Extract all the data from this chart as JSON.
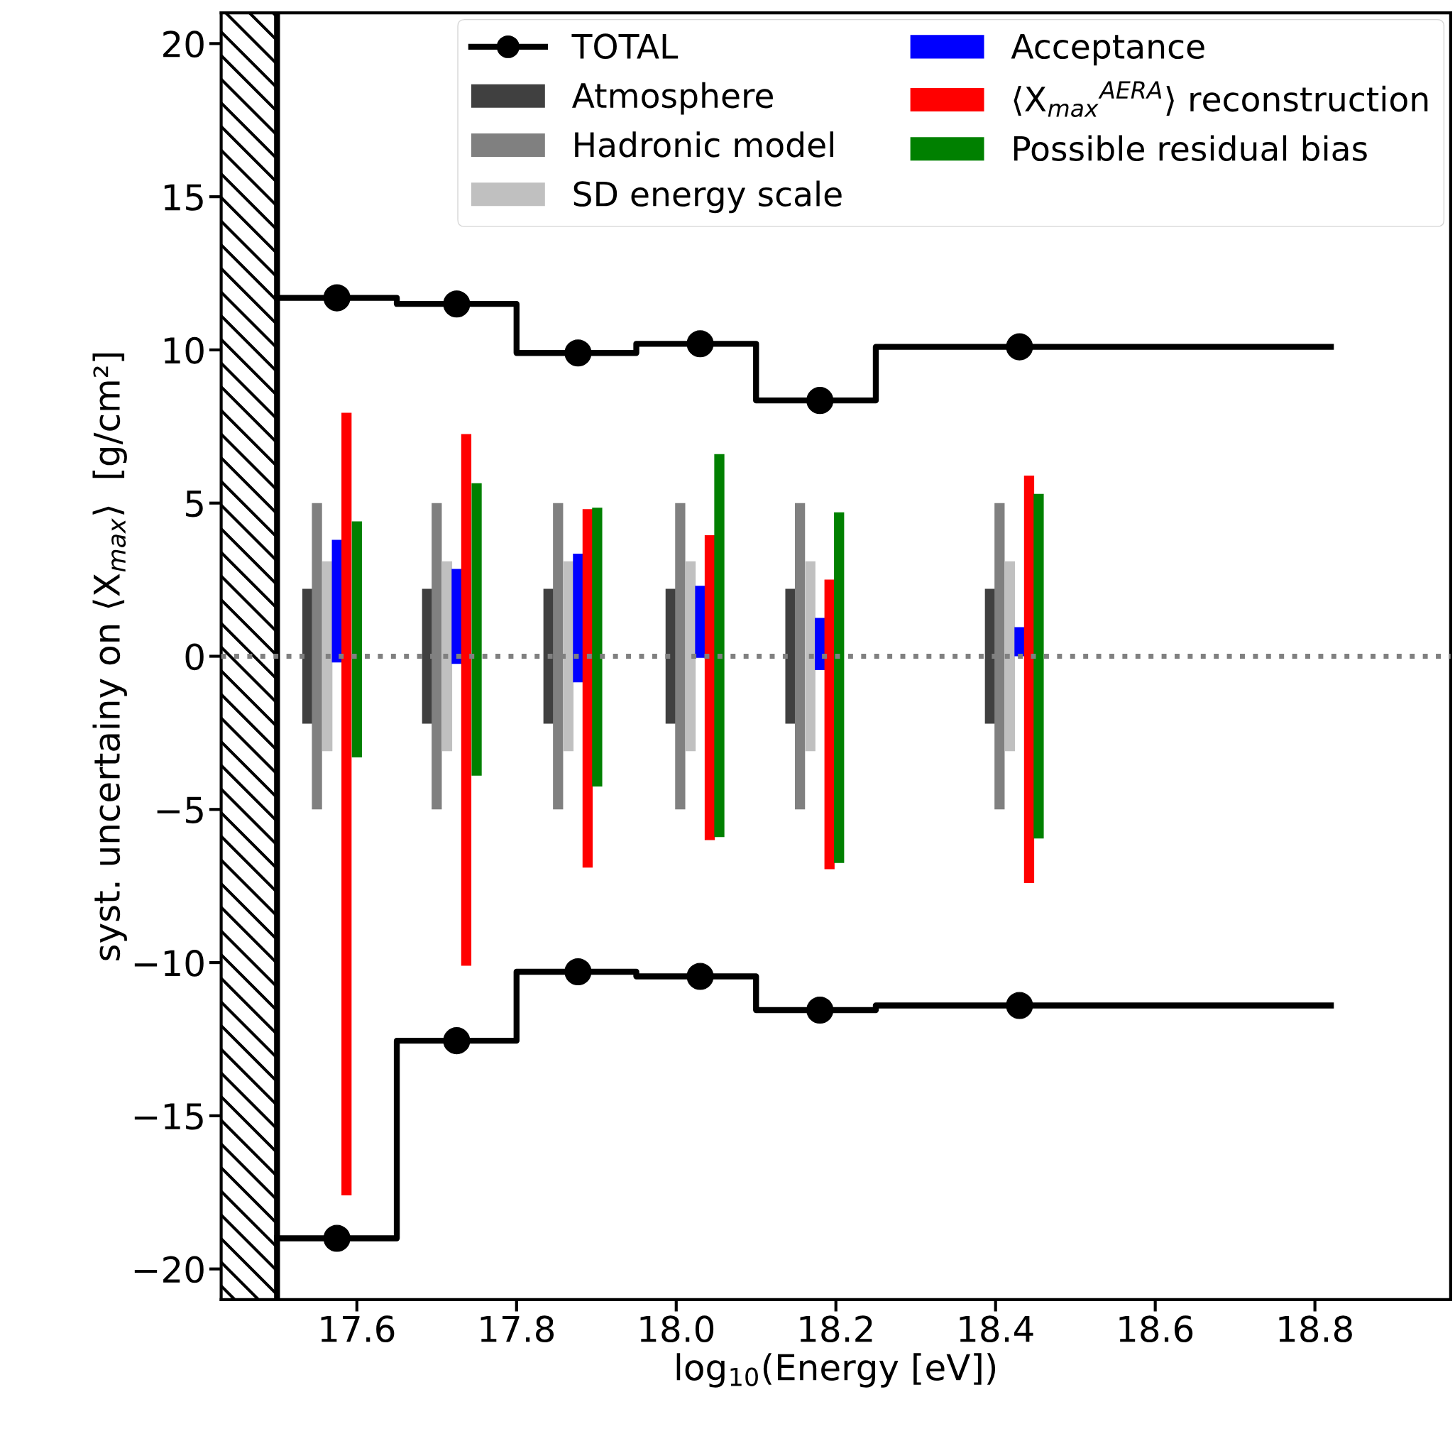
{
  "chart_data": {
    "type": "bar",
    "xlabel": "log$_{10}$(Energy [eV])",
    "ylabel": "syst. uncertainy on ⟨X$_{max}$⟩  [g/cm²]",
    "xlim": [
      17.43,
      18.97
    ],
    "ylim": [
      -21,
      21
    ],
    "xticks": [
      17.6,
      17.8,
      {
        "value": 18.0,
        "label": "18.0"
      },
      18.2,
      18.4,
      18.6,
      18.8
    ],
    "yticks": [
      {
        "value": -20,
        "label": "−20"
      },
      {
        "value": -15,
        "label": "−15"
      },
      {
        "value": -10,
        "label": "−10"
      },
      {
        "value": -5,
        "label": "−5"
      },
      0,
      5,
      10,
      15,
      20
    ],
    "grid": false,
    "legend": "top right",
    "bands": [
      {
        "axis": "x",
        "from": 17.43,
        "to": 17.5,
        "color": "#000000"
      }
    ],
    "ref_lines": [
      {
        "axis": "x",
        "value": 17.5,
        "color": "#000000",
        "line_style": "solid"
      },
      {
        "axis": "y",
        "value": 0,
        "color": "#808080",
        "line_style": "dotted"
      }
    ],
    "series": [
      {
        "name": "TOTAL",
        "type": "step",
        "color": "#000000",
        "x": [
          17.5,
          17.65,
          17.8,
          17.95,
          18.1,
          18.25,
          18.82
        ],
        "values": [
          11.7,
          11.5,
          9.9,
          10.2,
          8.35,
          10.1,
          10.1
        ]
      },
      {
        "type": "step",
        "color": "#000000",
        "x": [
          17.5,
          17.65,
          17.8,
          17.95,
          18.1,
          18.25,
          18.82
        ],
        "values": [
          -19.0,
          -12.55,
          -10.3,
          -10.45,
          -11.55,
          -11.4,
          -11.4
        ]
      },
      {
        "type": "scatter",
        "color": "#000000",
        "marker": "circle",
        "x": [
          17.575,
          17.725,
          17.877,
          18.03,
          18.18,
          18.43
        ],
        "values": [
          11.7,
          11.5,
          9.9,
          10.2,
          8.35,
          10.1
        ]
      },
      {
        "type": "scatter",
        "color": "#000000",
        "marker": "circle",
        "x": [
          17.575,
          17.725,
          17.877,
          18.03,
          18.18,
          18.43
        ],
        "values": [
          -19.0,
          -12.55,
          -10.3,
          -10.45,
          -11.55,
          -11.4
        ]
      },
      {
        "name": "Atmosphere",
        "color": "#404040",
        "x": [
          17.538,
          17.688,
          17.84,
          17.993,
          18.143,
          18.393
        ],
        "base": [
          -2.2,
          -2.2,
          -2.2,
          -2.2,
          -2.2,
          -2.2
        ],
        "values": [
          4.4,
          4.4,
          4.4,
          4.4,
          4.4,
          4.4
        ]
      },
      {
        "name": "Hadronic model",
        "color": "#808080",
        "x": [
          17.55,
          17.7,
          17.852,
          18.005,
          18.155,
          18.405
        ],
        "base": [
          -5,
          -5,
          -5,
          -5,
          -5,
          -5
        ],
        "values": [
          10,
          10,
          10,
          10,
          10,
          10
        ]
      },
      {
        "name": "SD energy scale",
        "color": "#c0c0c0",
        "x": [
          17.563,
          17.713,
          17.865,
          18.018,
          18.168,
          18.418
        ],
        "base": [
          -3.1,
          -3.1,
          -3.1,
          -3.1,
          -3.1,
          -3.1
        ],
        "values": [
          6.2,
          6.2,
          6.2,
          6.2,
          6.2,
          6.2
        ]
      },
      {
        "name": "Acceptance",
        "color": "#0000ff",
        "x": [
          17.575,
          17.725,
          17.877,
          18.03,
          18.18,
          18.43
        ],
        "base": [
          -0.2,
          -0.25,
          -0.85,
          -0.05,
          -0.45,
          0.0
        ],
        "values": [
          4.0,
          3.1,
          4.2,
          2.35,
          1.7,
          0.95
        ]
      },
      {
        "name": "⟨X$_{max}$$^{AERA}$⟩ reconstruction",
        "color": "#ff0000",
        "x": [
          17.587,
          17.737,
          17.889,
          18.042,
          18.192,
          18.442
        ],
        "base": [
          -17.6,
          -10.1,
          -6.9,
          -6.0,
          -6.95,
          -7.4
        ],
        "values": [
          25.55,
          17.35,
          11.7,
          9.95,
          9.45,
          13.3
        ]
      },
      {
        "name": "Possible residual bias",
        "color": "#008000",
        "x": [
          17.6,
          17.75,
          17.901,
          18.054,
          18.204,
          18.454
        ],
        "base": [
          -3.3,
          -3.9,
          -4.25,
          -5.9,
          -6.75,
          -5.95
        ],
        "values": [
          7.7,
          9.55,
          9.1,
          12.5,
          11.45,
          11.25
        ]
      }
    ]
  }
}
